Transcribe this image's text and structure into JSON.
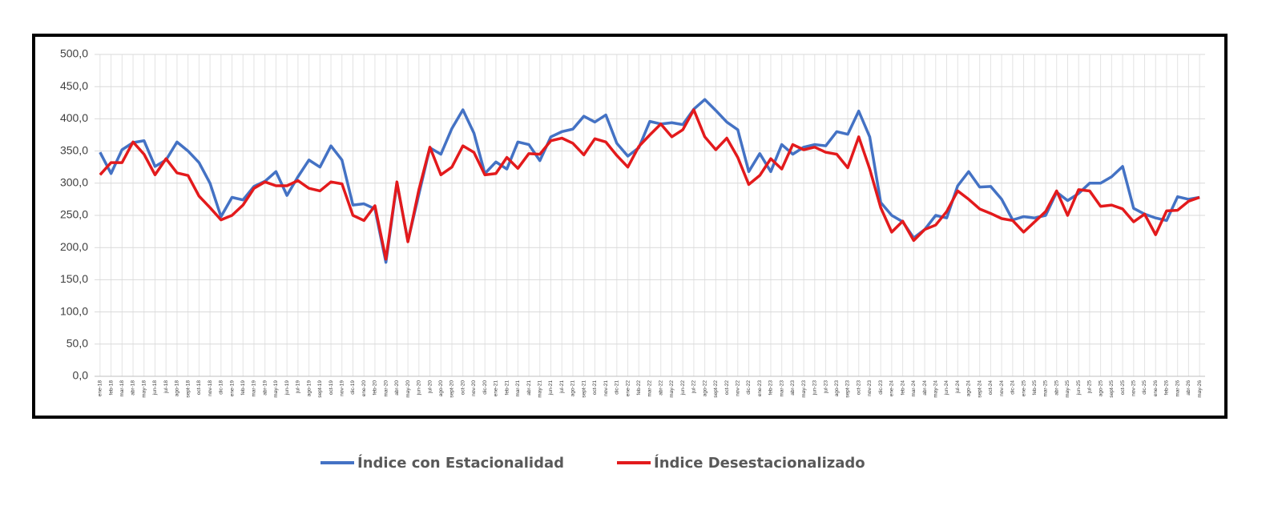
{
  "chart_data": {
    "type": "line",
    "categories": [
      "ene-18",
      "feb-18",
      "mar-18",
      "abr-18",
      "may-18",
      "jun-18",
      "jul-18",
      "ago-18",
      "sept-18",
      "oct-18",
      "nov-18",
      "dic-18",
      "ene-19",
      "feb-19",
      "mar-19",
      "abr-19",
      "may-19",
      "jun-19",
      "jul-19",
      "ago-19",
      "sept-19",
      "oct-19",
      "nov-19",
      "dic-19",
      "ene-20",
      "feb-20",
      "mar-20",
      "abr-20",
      "may-20",
      "jun-20",
      "jul-20",
      "ago-20",
      "sept-20",
      "oct-20",
      "nov-20",
      "dic-20",
      "ene-21",
      "feb-21",
      "mar-21",
      "abr-21",
      "may-21",
      "jun-21",
      "jul-21",
      "ago-21",
      "sept-21",
      "oct-21",
      "nov-21",
      "dic-21",
      "ene-22",
      "feb-22",
      "mar-22",
      "abr-22",
      "may-22",
      "jun-22",
      "jul-22",
      "ago-22",
      "sept-22",
      "oct-22",
      "nov-22",
      "dic-22",
      "ene-23",
      "feb-23",
      "mar-23",
      "abr-23",
      "may-23",
      "jun-23",
      "jul-23",
      "ago-23",
      "sept-23",
      "oct-23",
      "nov-23",
      "dic-23",
      "ene-24",
      "feb-24",
      "mar-24",
      "abr-24",
      "may-24",
      "jun-24",
      "jul-24",
      "ago-24",
      "sept-24",
      "oct-24",
      "nov-24",
      "dic-24",
      "ene-25",
      "feb-25",
      "mar-25",
      "abr-25",
      "may-25",
      "jun-25",
      "jul-25",
      "ago-25",
      "sept-25",
      "oct-25",
      "nov-25",
      "dic-25",
      "ene-26",
      "feb-26",
      "mar-26",
      "abr-26",
      "may-26"
    ],
    "series": [
      {
        "name": "Índice con Estacionalidad",
        "color": "#4472c4",
        "values": [
          348,
          315,
          352,
          363,
          366,
          326,
          336,
          364,
          350,
          332,
          300,
          248,
          278,
          274,
          295,
          303,
          318,
          281,
          310,
          336,
          325,
          358,
          336,
          266,
          268,
          260,
          177,
          300,
          210,
          283,
          355,
          345,
          385,
          414,
          378,
          315,
          333,
          322,
          364,
          360,
          335,
          372,
          380,
          384,
          404,
          395,
          406,
          362,
          342,
          355,
          396,
          392,
          394,
          391,
          415,
          430,
          413,
          395,
          383,
          318,
          346,
          318,
          360,
          345,
          356,
          360,
          358,
          380,
          376,
          412,
          372,
          270,
          250,
          240,
          215,
          228,
          250,
          246,
          296,
          318,
          294,
          295,
          275,
          243,
          248,
          246,
          250,
          286,
          273,
          284,
          300,
          300,
          310,
          326,
          261,
          252,
          246,
          242,
          279,
          275,
          278
        ]
      },
      {
        "name": "Índice Desestacionalizado",
        "color": "#e31a1c",
        "values": [
          313,
          332,
          332,
          364,
          345,
          313,
          338,
          316,
          312,
          280,
          262,
          243,
          250,
          266,
          292,
          302,
          296,
          296,
          304,
          292,
          288,
          302,
          299,
          250,
          242,
          265,
          182,
          302,
          209,
          290,
          356,
          313,
          325,
          358,
          348,
          313,
          315,
          340,
          323,
          346,
          345,
          366,
          370,
          362,
          344,
          369,
          364,
          343,
          325,
          357,
          375,
          392,
          372,
          383,
          414,
          372,
          352,
          370,
          340,
          298,
          312,
          338,
          322,
          360,
          352,
          356,
          348,
          345,
          324,
          372,
          322,
          262,
          224,
          241,
          211,
          228,
          235,
          256,
          288,
          275,
          260,
          253,
          245,
          242,
          224,
          240,
          256,
          288,
          250,
          290,
          288,
          264,
          266,
          260,
          240,
          252,
          220,
          257,
          258,
          272,
          278
        ]
      }
    ],
    "ylim": [
      0,
      500
    ],
    "yticks": [
      {
        "value": 0,
        "label": "0,0"
      },
      {
        "value": 50,
        "label": "50,0"
      },
      {
        "value": 100,
        "label": "100,0"
      },
      {
        "value": 150,
        "label": "150,0"
      },
      {
        "value": 200,
        "label": "200,0"
      },
      {
        "value": 250,
        "label": "250,0"
      },
      {
        "value": 300,
        "label": "300,0"
      },
      {
        "value": 350,
        "label": "350,0"
      },
      {
        "value": 400,
        "label": "400,0"
      },
      {
        "value": 450,
        "label": "450,0"
      },
      {
        "value": 500,
        "label": "500,0"
      }
    ],
    "grid": true,
    "legend": "bottom"
  }
}
